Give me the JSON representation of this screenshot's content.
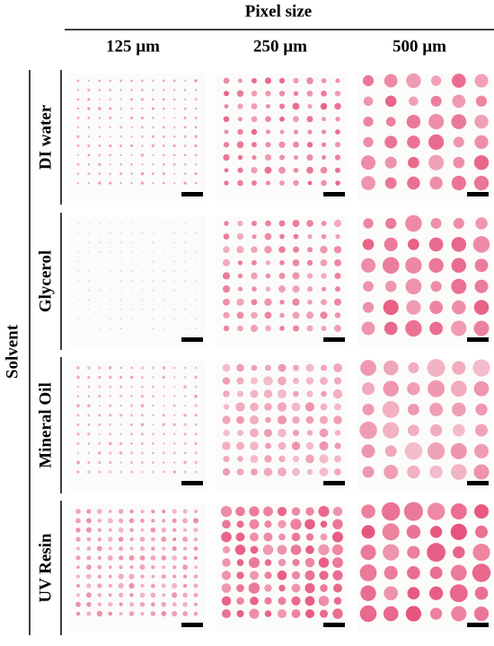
{
  "header": {
    "title": "Pixel size",
    "columns": [
      "125 µm",
      "250 µm",
      "500 µm"
    ]
  },
  "row_group": "Solvent",
  "rows": [
    "DI water",
    "Glycerol",
    "Mineral Oil",
    "UV Resin"
  ]
}
